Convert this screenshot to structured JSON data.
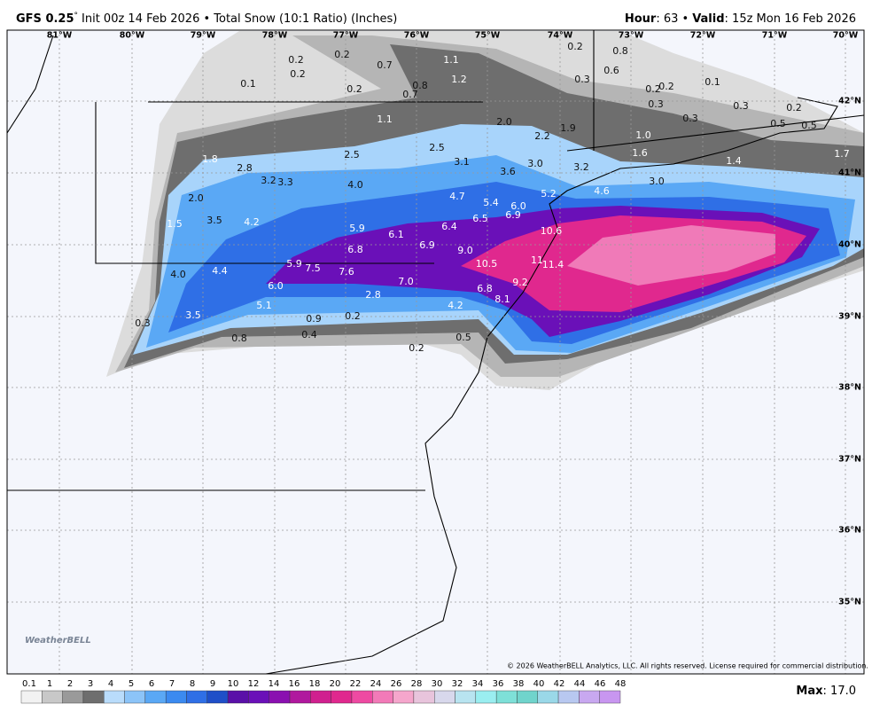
{
  "header": {
    "model": "GFS 0.25",
    "degree": "°",
    "description": "Init 00z 14 Feb 2026 • Total Snow (10:1 Ratio) (Inches)",
    "hour_label": "Hour",
    "hour_value": ": 63 •",
    "valid_label": "Valid",
    "valid_value": ": 15z Mon 16 Feb 2026"
  },
  "longitude_labels": [
    "81°W",
    "80°W",
    "79°W",
    "78°W",
    "77°W",
    "76°W",
    "75°W",
    "74°W",
    "73°W",
    "72°W",
    "71°W",
    "70°W"
  ],
  "latitude_labels": [
    "42°N",
    "41°N",
    "40°N",
    "39°N",
    "38°N",
    "37°N",
    "36°N",
    "35°N"
  ],
  "snow_labels": [
    "0.2",
    "0.2",
    "0.2",
    "0.1",
    "0.2",
    "0.7",
    "0.7",
    "0.8",
    "1.1",
    "1.2",
    "0.2",
    "0.8",
    "0.6",
    "0.3",
    "0.2",
    "0.2",
    "0.1",
    "0.3",
    "0.3",
    "0.3",
    "0.2",
    "1.1",
    "2.0",
    "2.2",
    "1.9",
    "0.5",
    "0.5",
    "1.0",
    "1.8",
    "2.8",
    "2.5",
    "2.5",
    "3.1",
    "3.6",
    "3.0",
    "3.2",
    "1.6",
    "1.4",
    "1.7",
    "3.2",
    "3.3",
    "4.0",
    "4.7",
    "5.2",
    "4.6",
    "3.0",
    "2.0",
    "3.5",
    "4.2",
    "1.5",
    "5.4",
    "6.0",
    "6.5",
    "6.9",
    "5.9",
    "6.1",
    "6.4",
    "6.9",
    "10.6",
    "6.8",
    "9.0",
    "4.0",
    "4.4",
    "5.9",
    "7.5",
    "7.6",
    "7.0",
    "10.5",
    "11",
    "11.4",
    "6.0",
    "9.2",
    "6.8",
    "5.1",
    "2.8",
    "8.1",
    "4.2",
    "3.5",
    "0.3",
    "0.9",
    "0.2",
    "0.8",
    "0.4",
    "0.5",
    "0.2"
  ],
  "copyright": "© 2026 WeatherBELL Analytics, LLC. All rights reserved. License required for commercial distribution.",
  "logo": "WeatherBELL",
  "colorbar_labels": [
    "0.1",
    "1",
    "2",
    "3",
    "4",
    "5",
    "6",
    "7",
    "8",
    "9",
    "10",
    "12",
    "14",
    "16",
    "18",
    "20",
    "22",
    "24",
    "26",
    "28",
    "30",
    "32",
    "34",
    "36",
    "38",
    "40",
    "42",
    "44",
    "46",
    "48"
  ],
  "max_label": "Max",
  "max_value": ": 17.0"
}
